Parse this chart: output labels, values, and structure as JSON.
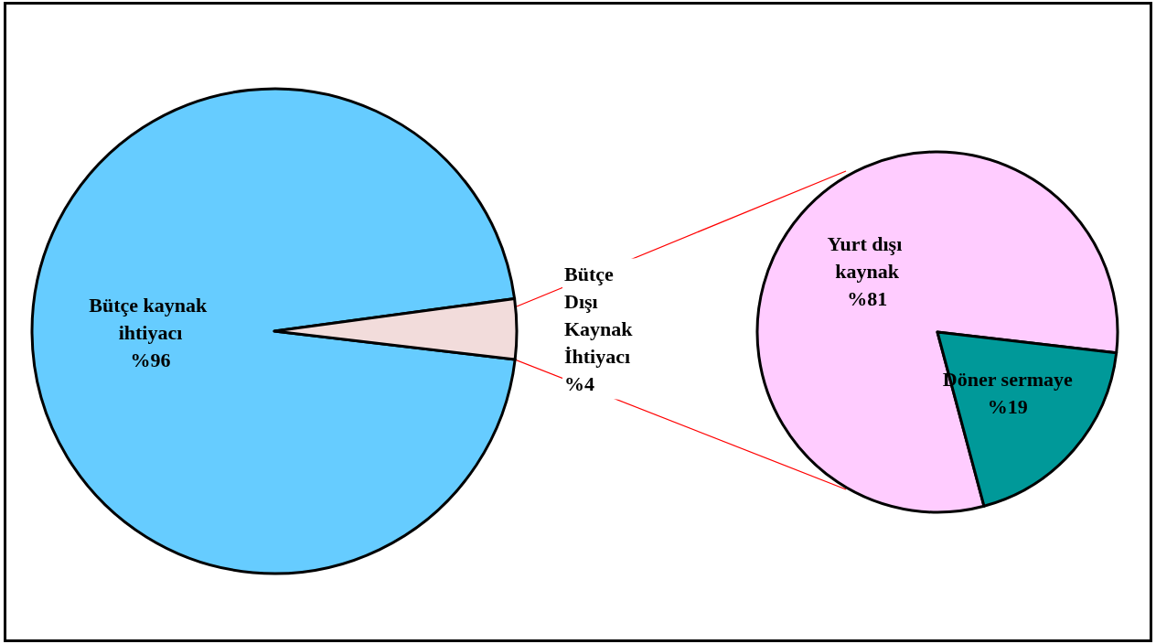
{
  "chart_data": [
    {
      "type": "pie",
      "categories": [
        "Bütçe kaynak ihtiyacı",
        "Bütçe Dışı Kaynak İhtiyacı"
      ],
      "values": [
        96,
        4
      ],
      "value_labels": [
        "%96",
        "%4"
      ],
      "colors": [
        "#66ccff",
        "#f2dcdb"
      ]
    },
    {
      "type": "pie",
      "categories": [
        "Yurt dışı kaynak",
        "Döner sermaye"
      ],
      "values": [
        81,
        19
      ],
      "value_labels": [
        "%81",
        "%19"
      ],
      "colors": [
        "#ffccff",
        "#009999"
      ]
    }
  ]
}
